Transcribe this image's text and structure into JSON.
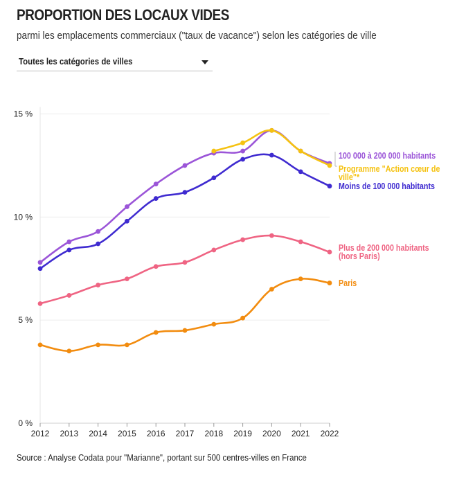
{
  "header": {
    "title": "PROPORTION DES LOCAUX VIDES",
    "subtitle": "parmi les emplacements commerciaux (\"taux de vacance\") selon les catégories de ville"
  },
  "filter": {
    "selected": "Toutes les catégories de villes",
    "icon": "chevron-down-icon"
  },
  "source": "Source : Analyse Codata pour \"Marianne\", portant sur 500 centres-villes en France",
  "chart_data": {
    "type": "line",
    "title": "PROPORTION DES LOCAUX VIDES",
    "xlabel": "",
    "ylabel": "",
    "x": [
      2012,
      2013,
      2014,
      2015,
      2016,
      2017,
      2018,
      2019,
      2020,
      2021,
      2022
    ],
    "x_tick_labels": [
      "2012",
      "2013",
      "2014",
      "2015",
      "2016",
      "2017",
      "2018",
      "2019",
      "2020",
      "2021",
      "2022"
    ],
    "ylim": [
      0,
      15
    ],
    "y_ticks": [
      0,
      5,
      10,
      15
    ],
    "y_tick_labels": [
      "0 %",
      "5 %",
      "10 %",
      "15 %"
    ],
    "grid": true,
    "series": [
      {
        "name": "Plus de 200 000 habitants (hors Paris)",
        "label_lines": [
          "Plus de 200 000 habitants",
          "(hors Paris)"
        ],
        "color": "#ef6483",
        "values": [
          5.8,
          6.2,
          6.7,
          7.0,
          7.6,
          7.8,
          8.4,
          8.9,
          9.1,
          8.8,
          8.3
        ]
      },
      {
        "name": "Paris",
        "label_lines": [
          "Paris"
        ],
        "color": "#f28c0f",
        "values": [
          3.8,
          3.5,
          3.8,
          3.8,
          4.4,
          4.5,
          4.8,
          5.1,
          6.5,
          7.0,
          6.8
        ]
      },
      {
        "name": "Moins de 100 000 habitants",
        "label_lines": [
          "Moins de 100 000 habitants"
        ],
        "color": "#3f2bd0",
        "values": [
          7.5,
          8.4,
          8.7,
          9.8,
          10.9,
          11.2,
          11.9,
          12.8,
          13.0,
          12.2,
          11.5
        ]
      },
      {
        "name": "100 000 à 200 000 habitants",
        "label_lines": [
          "100 000 à 200 000 habitants"
        ],
        "color": "#9b55d8",
        "values": [
          7.8,
          8.8,
          9.3,
          10.5,
          11.6,
          12.5,
          13.1,
          13.2,
          14.2,
          13.2,
          12.6
        ]
      },
      {
        "name": "Programme \"Action cœur de ville\"*",
        "label_lines": [
          "Programme \"Action cœur de",
          "ville\"*"
        ],
        "color": "#f5c211",
        "values": [
          null,
          null,
          null,
          null,
          null,
          null,
          13.2,
          13.6,
          14.2,
          13.2,
          12.5
        ]
      }
    ]
  }
}
